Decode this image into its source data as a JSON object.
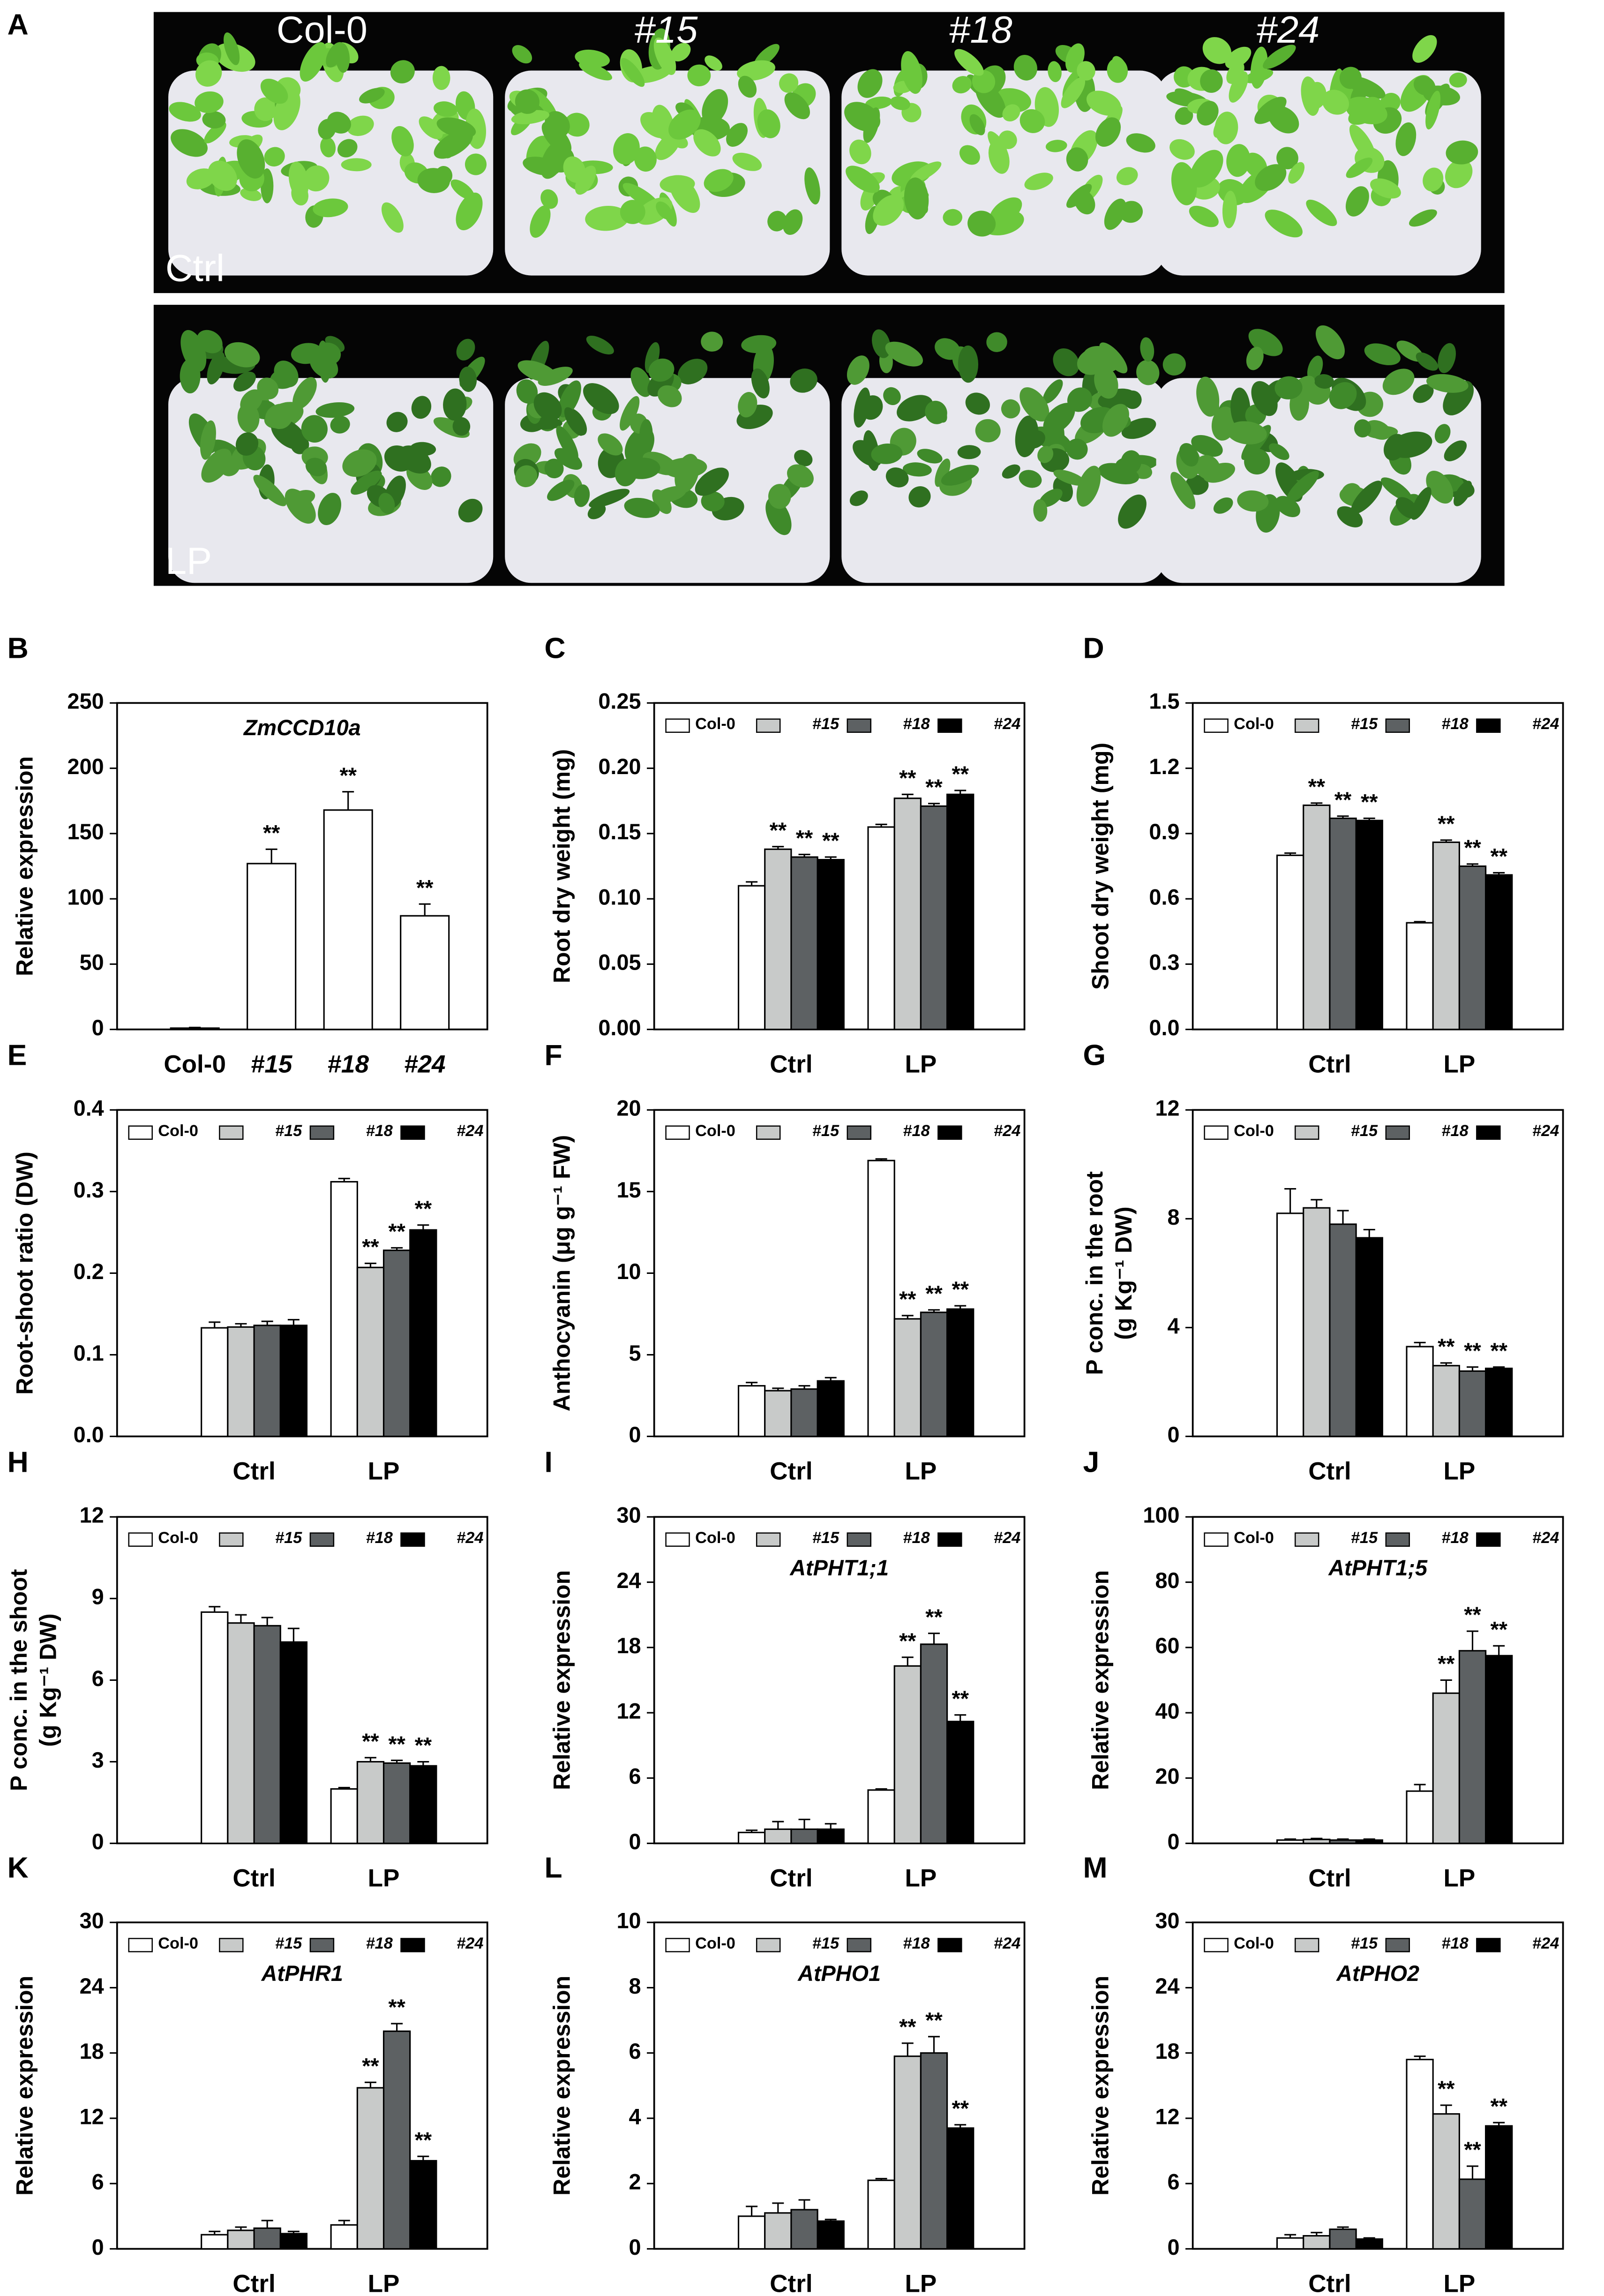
{
  "photo_panel": {
    "label": "A",
    "genotypes": [
      "Col-0",
      "#15",
      "#18",
      "#24"
    ],
    "rows": [
      "Ctrl",
      "LP"
    ]
  },
  "chart_data": [
    {
      "type": "bar",
      "panel": "B",
      "title": "ZmCCD10a",
      "ylabel": "Relative expression",
      "categories": [
        "Col-0",
        "#15",
        "#18",
        "#24"
      ],
      "values": [
        1,
        127,
        168,
        87
      ],
      "errors": [
        0.5,
        11,
        14,
        9
      ],
      "sig": [
        null,
        "**",
        "**",
        "**"
      ],
      "color": "#ffffff",
      "ylim": [
        0,
        250
      ],
      "yticks": [
        0,
        50,
        100,
        150,
        200,
        250
      ]
    },
    {
      "type": "bar",
      "panel": "C",
      "ylabel": "Root dry weight (mg)",
      "categories": [
        "Ctrl",
        "LP"
      ],
      "ylim": [
        0,
        0.25
      ],
      "yticks": [
        {
          "value": 0,
          "label": "0.00"
        },
        0.05,
        {
          "value": 0.1,
          "label": "0.10"
        },
        0.15,
        {
          "value": 0.2,
          "label": "0.20"
        },
        0.25
      ],
      "series": [
        {
          "name": "Col-0",
          "color": "#ffffff",
          "values": [
            0.11,
            0.155
          ],
          "errors": [
            0.003,
            0.002
          ],
          "sig": [
            null,
            null
          ]
        },
        {
          "name": "#15",
          "color": "#c8cac9",
          "values": [
            0.138,
            0.177
          ],
          "errors": [
            0.002,
            0.003
          ],
          "sig": [
            "**",
            "**"
          ]
        },
        {
          "name": "#18",
          "color": "#5d6163",
          "values": [
            0.132,
            0.171
          ],
          "errors": [
            0.002,
            0.002
          ],
          "sig": [
            "**",
            "**"
          ]
        },
        {
          "name": "#24",
          "color": "#000000",
          "values": [
            0.13,
            0.18
          ],
          "errors": [
            0.002,
            0.003
          ],
          "sig": [
            "**",
            "**"
          ]
        }
      ]
    },
    {
      "type": "bar",
      "panel": "D",
      "ylabel": "Shoot dry weight (mg)",
      "categories": [
        "Ctrl",
        "LP"
      ],
      "ylim": [
        0,
        1.5
      ],
      "yticks": [
        {
          "value": 0,
          "label": "0.0"
        },
        0.3,
        0.6,
        0.9,
        1.2,
        1.5
      ],
      "series": [
        {
          "name": "Col-0",
          "color": "#ffffff",
          "values": [
            0.8,
            0.49
          ],
          "errors": [
            0.01,
            0.005
          ],
          "sig": [
            null,
            null
          ]
        },
        {
          "name": "#15",
          "color": "#c8cac9",
          "values": [
            1.03,
            0.86
          ],
          "errors": [
            0.01,
            0.01
          ],
          "sig": [
            "**",
            "**"
          ]
        },
        {
          "name": "#18",
          "color": "#5d6163",
          "values": [
            0.97,
            0.75
          ],
          "errors": [
            0.01,
            0.01
          ],
          "sig": [
            "**",
            "**"
          ]
        },
        {
          "name": "#24",
          "color": "#000000",
          "values": [
            0.96,
            0.71
          ],
          "errors": [
            0.01,
            0.01
          ],
          "sig": [
            "**",
            "**"
          ]
        }
      ]
    },
    {
      "type": "bar",
      "panel": "E",
      "ylabel": "Root-shoot ratio (DW)",
      "categories": [
        "Ctrl",
        "LP"
      ],
      "ylim": [
        0,
        0.4
      ],
      "yticks": [
        {
          "value": 0,
          "label": "0.0"
        },
        0.1,
        0.2,
        0.3,
        0.4
      ],
      "series": [
        {
          "name": "Col-0",
          "color": "#ffffff",
          "values": [
            0.133,
            0.312
          ],
          "errors": [
            0.007,
            0.004
          ],
          "sig": [
            null,
            null
          ]
        },
        {
          "name": "#15",
          "color": "#c8cac9",
          "values": [
            0.134,
            0.207
          ],
          "errors": [
            0.004,
            0.005
          ],
          "sig": [
            null,
            "**"
          ]
        },
        {
          "name": "#18",
          "color": "#5d6163",
          "values": [
            0.136,
            0.228
          ],
          "errors": [
            0.005,
            0.003
          ],
          "sig": [
            null,
            "**"
          ]
        },
        {
          "name": "#24",
          "color": "#000000",
          "values": [
            0.136,
            0.253
          ],
          "errors": [
            0.007,
            0.006
          ],
          "sig": [
            null,
            "**"
          ]
        }
      ]
    },
    {
      "type": "bar",
      "panel": "F",
      "ylabel": "Anthocyanin (μg g⁻¹ FW)",
      "categories": [
        "Ctrl",
        "LP"
      ],
      "ylim": [
        0,
        20
      ],
      "yticks": [
        0,
        5,
        10,
        15,
        20
      ],
      "series": [
        {
          "name": "Col-0",
          "color": "#ffffff",
          "values": [
            3.1,
            16.9
          ],
          "errors": [
            0.2,
            0.1
          ],
          "sig": [
            null,
            null
          ]
        },
        {
          "name": "#15",
          "color": "#c8cac9",
          "values": [
            2.8,
            7.2
          ],
          "errors": [
            0.15,
            0.2
          ],
          "sig": [
            null,
            "**"
          ]
        },
        {
          "name": "#18",
          "color": "#5d6163",
          "values": [
            2.9,
            7.6
          ],
          "errors": [
            0.2,
            0.15
          ],
          "sig": [
            null,
            "**"
          ]
        },
        {
          "name": "#24",
          "color": "#000000",
          "values": [
            3.4,
            7.8
          ],
          "errors": [
            0.2,
            0.2
          ],
          "sig": [
            null,
            "**"
          ]
        }
      ]
    },
    {
      "type": "bar",
      "panel": "G",
      "ylabel": [
        "P conc. in the root",
        "(g Kg⁻¹ DW)"
      ],
      "categories": [
        "Ctrl",
        "LP"
      ],
      "ylim": [
        0,
        12
      ],
      "yticks": [
        0,
        4,
        8,
        12
      ],
      "series": [
        {
          "name": "Col-0",
          "color": "#ffffff",
          "values": [
            8.2,
            3.3
          ],
          "errors": [
            0.9,
            0.15
          ],
          "sig": [
            null,
            null
          ]
        },
        {
          "name": "#15",
          "color": "#c8cac9",
          "values": [
            8.4,
            2.6
          ],
          "errors": [
            0.3,
            0.1
          ],
          "sig": [
            null,
            "**"
          ]
        },
        {
          "name": "#18",
          "color": "#5d6163",
          "values": [
            7.8,
            2.4
          ],
          "errors": [
            0.5,
            0.15
          ],
          "sig": [
            null,
            "**"
          ]
        },
        {
          "name": "#24",
          "color": "#000000",
          "values": [
            7.3,
            2.5
          ],
          "errors": [
            0.3,
            0.05
          ],
          "sig": [
            null,
            "**"
          ]
        }
      ]
    },
    {
      "type": "bar",
      "panel": "H",
      "ylabel": [
        "P conc. in the shoot",
        "(g Kg⁻¹ DW)"
      ],
      "categories": [
        "Ctrl",
        "LP"
      ],
      "ylim": [
        0,
        12
      ],
      "yticks": [
        0,
        3,
        6,
        9,
        12
      ],
      "series": [
        {
          "name": "Col-0",
          "color": "#ffffff",
          "values": [
            8.5,
            2.0
          ],
          "errors": [
            0.2,
            0.05
          ],
          "sig": [
            null,
            null
          ]
        },
        {
          "name": "#15",
          "color": "#c8cac9",
          "values": [
            8.1,
            3.0
          ],
          "errors": [
            0.3,
            0.15
          ],
          "sig": [
            null,
            "**"
          ]
        },
        {
          "name": "#18",
          "color": "#5d6163",
          "values": [
            8.0,
            2.95
          ],
          "errors": [
            0.3,
            0.1
          ],
          "sig": [
            null,
            "**"
          ]
        },
        {
          "name": "#24",
          "color": "#000000",
          "values": [
            7.4,
            2.85
          ],
          "errors": [
            0.5,
            0.15
          ],
          "sig": [
            null,
            "**"
          ]
        }
      ]
    },
    {
      "type": "bar",
      "panel": "I",
      "title": "AtPHT1;1",
      "ylabel": "Relative expression",
      "categories": [
        "Ctrl",
        "LP"
      ],
      "ylim": [
        0,
        30
      ],
      "yticks": [
        0,
        6,
        12,
        18,
        24,
        30
      ],
      "series": [
        {
          "name": "Col-0",
          "color": "#ffffff",
          "values": [
            1.0,
            4.9
          ],
          "errors": [
            0.2,
            0.1
          ],
          "sig": [
            null,
            null
          ]
        },
        {
          "name": "#15",
          "color": "#c8cac9",
          "values": [
            1.3,
            16.3
          ],
          "errors": [
            0.7,
            0.8
          ],
          "sig": [
            null,
            "**"
          ]
        },
        {
          "name": "#18",
          "color": "#5d6163",
          "values": [
            1.3,
            18.3
          ],
          "errors": [
            0.9,
            1.0
          ],
          "sig": [
            null,
            "**"
          ]
        },
        {
          "name": "#24",
          "color": "#000000",
          "values": [
            1.3,
            11.2
          ],
          "errors": [
            0.5,
            0.6
          ],
          "sig": [
            null,
            "**"
          ]
        }
      ]
    },
    {
      "type": "bar",
      "panel": "J",
      "title": "AtPHT1;5",
      "ylabel": "Relative expression",
      "categories": [
        "Ctrl",
        "LP"
      ],
      "ylim": [
        0,
        100
      ],
      "yticks": [
        0,
        20,
        40,
        60,
        80,
        100
      ],
      "series": [
        {
          "name": "Col-0",
          "color": "#ffffff",
          "values": [
            1.0,
            16
          ],
          "errors": [
            0.3,
            2
          ],
          "sig": [
            null,
            null
          ]
        },
        {
          "name": "#15",
          "color": "#c8cac9",
          "values": [
            1.2,
            46
          ],
          "errors": [
            0.3,
            4
          ],
          "sig": [
            null,
            "**"
          ]
        },
        {
          "name": "#18",
          "color": "#5d6163",
          "values": [
            1.0,
            59
          ],
          "errors": [
            0.3,
            6
          ],
          "sig": [
            null,
            "**"
          ]
        },
        {
          "name": "#24",
          "color": "#000000",
          "values": [
            1.0,
            57.5
          ],
          "errors": [
            0.3,
            3
          ],
          "sig": [
            null,
            "**"
          ]
        }
      ]
    },
    {
      "type": "bar",
      "panel": "K",
      "title": "AtPHR1",
      "ylabel": "Relative expression",
      "categories": [
        "Ctrl",
        "LP"
      ],
      "ylim": [
        0,
        30
      ],
      "yticks": [
        0,
        6,
        12,
        18,
        24,
        30
      ],
      "series": [
        {
          "name": "Col-0",
          "color": "#ffffff",
          "values": [
            1.3,
            2.2
          ],
          "errors": [
            0.3,
            0.4
          ],
          "sig": [
            null,
            null
          ]
        },
        {
          "name": "#15",
          "color": "#c8cac9",
          "values": [
            1.7,
            14.8
          ],
          "errors": [
            0.3,
            0.5
          ],
          "sig": [
            null,
            "**"
          ]
        },
        {
          "name": "#18",
          "color": "#5d6163",
          "values": [
            1.9,
            20.0
          ],
          "errors": [
            0.7,
            0.7
          ],
          "sig": [
            null,
            "**"
          ]
        },
        {
          "name": "#24",
          "color": "#000000",
          "values": [
            1.4,
            8.1
          ],
          "errors": [
            0.2,
            0.4
          ],
          "sig": [
            null,
            "**"
          ]
        }
      ]
    },
    {
      "type": "bar",
      "panel": "L",
      "title": "AtPHO1",
      "ylabel": "Relative expression",
      "categories": [
        "Ctrl",
        "LP"
      ],
      "ylim": [
        0,
        10
      ],
      "yticks": [
        0,
        2,
        4,
        6,
        8,
        10
      ],
      "series": [
        {
          "name": "Col-0",
          "color": "#ffffff",
          "values": [
            1.0,
            2.1
          ],
          "errors": [
            0.3,
            0.05
          ],
          "sig": [
            null,
            null
          ]
        },
        {
          "name": "#15",
          "color": "#c8cac9",
          "values": [
            1.1,
            5.9
          ],
          "errors": [
            0.3,
            0.4
          ],
          "sig": [
            null,
            "**"
          ]
        },
        {
          "name": "#18",
          "color": "#5d6163",
          "values": [
            1.2,
            6.0
          ],
          "errors": [
            0.3,
            0.5
          ],
          "sig": [
            null,
            "**"
          ]
        },
        {
          "name": "#24",
          "color": "#000000",
          "values": [
            0.85,
            3.7
          ],
          "errors": [
            0.05,
            0.1
          ],
          "sig": [
            null,
            "**"
          ]
        }
      ]
    },
    {
      "type": "bar",
      "panel": "M",
      "title": "AtPHO2",
      "ylabel": "Relative expression",
      "categories": [
        "Ctrl",
        "LP"
      ],
      "ylim": [
        0,
        30
      ],
      "yticks": [
        0,
        6,
        12,
        18,
        24,
        30
      ],
      "series": [
        {
          "name": "Col-0",
          "color": "#ffffff",
          "values": [
            1.0,
            17.4
          ],
          "errors": [
            0.3,
            0.3
          ],
          "sig": [
            null,
            null
          ]
        },
        {
          "name": "#15",
          "color": "#c8cac9",
          "values": [
            1.2,
            12.4
          ],
          "errors": [
            0.3,
            0.8
          ],
          "sig": [
            null,
            "**"
          ]
        },
        {
          "name": "#18",
          "color": "#5d6163",
          "values": [
            1.8,
            6.4
          ],
          "errors": [
            0.2,
            1.2
          ],
          "sig": [
            null,
            "**"
          ]
        },
        {
          "name": "#24",
          "color": "#000000",
          "values": [
            0.9,
            11.3
          ],
          "errors": [
            0.1,
            0.3
          ],
          "sig": [
            null,
            "**"
          ]
        }
      ]
    }
  ]
}
